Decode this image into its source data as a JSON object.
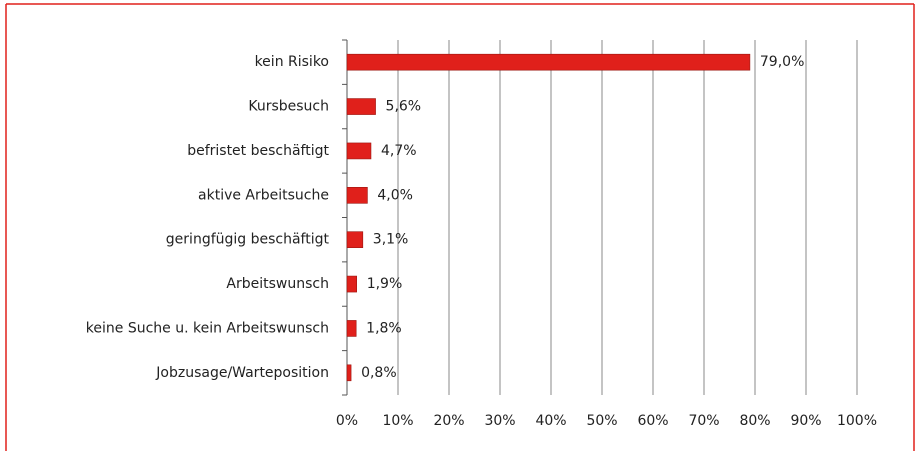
{
  "chart_data": {
    "type": "bar",
    "orientation": "horizontal",
    "categories": [
      "kein Risiko",
      "Kursbesuch",
      "befristet beschäftigt",
      "aktive Arbeitsuche",
      "geringfügig beschäftigt",
      "Arbeitswunsch",
      "keine Suche u. kein Arbeitswunsch",
      "Jobzusage/Warteposition"
    ],
    "values": [
      79.0,
      5.6,
      4.7,
      4.0,
      3.1,
      1.9,
      1.8,
      0.8
    ],
    "value_labels": [
      "79,0%",
      "5,6%",
      "4,7%",
      "4,0%",
      "3,1%",
      "1,9%",
      "1,8%",
      "0,8%"
    ],
    "color": "#e0201b",
    "xlim": [
      0,
      100
    ],
    "xticks": [
      {
        "value": 0,
        "label": "0%"
      },
      {
        "value": 10,
        "label": "10%"
      },
      {
        "value": 20,
        "label": "20%"
      },
      {
        "value": 30,
        "label": "30%"
      },
      {
        "value": 40,
        "label": "40%"
      },
      {
        "value": 50,
        "label": "50%"
      },
      {
        "value": 60,
        "label": "60%"
      },
      {
        "value": 70,
        "label": "70%"
      },
      {
        "value": 80,
        "label": "80%"
      },
      {
        "value": 90,
        "label": "90%"
      },
      {
        "value": 100,
        "label": "100%"
      }
    ],
    "grid": true
  }
}
